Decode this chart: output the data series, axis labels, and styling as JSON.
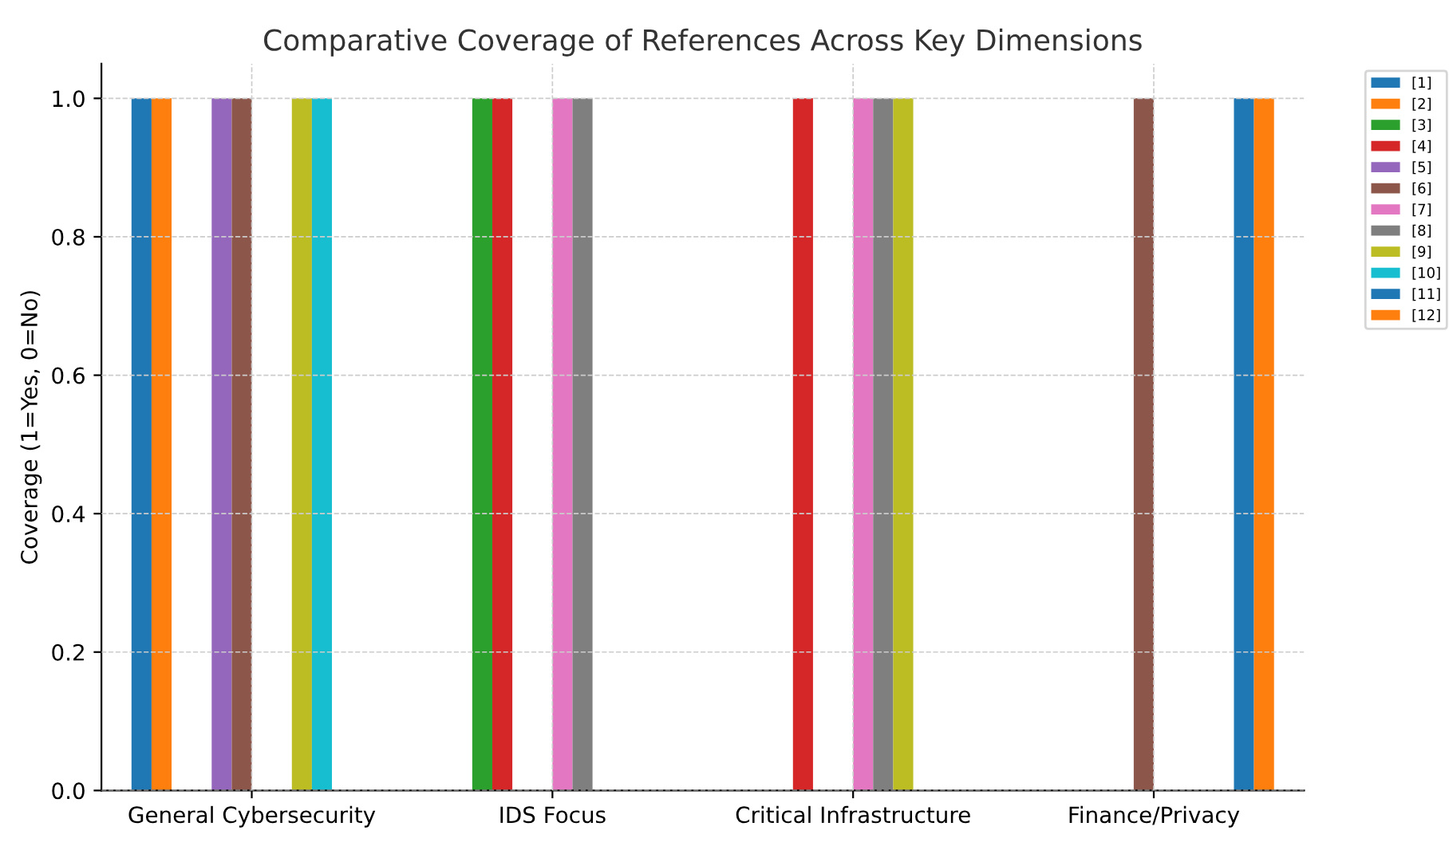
{
  "chart_data": {
    "type": "bar",
    "title": "Comparative Coverage of References Across Key Dimensions",
    "ylabel": "Coverage (1=Yes, 0=No)",
    "categories": [
      "General Cybersecurity",
      "IDS Focus",
      "Critical Infrastructure",
      "Finance/Privacy"
    ],
    "series": [
      {
        "name": "[1]",
        "color": "#1f77b4",
        "values": [
          1,
          0,
          0,
          0
        ]
      },
      {
        "name": "[2]",
        "color": "#ff7f0e",
        "values": [
          1,
          0,
          0,
          0
        ]
      },
      {
        "name": "[3]",
        "color": "#2ca02c",
        "values": [
          0,
          1,
          0,
          0
        ]
      },
      {
        "name": "[4]",
        "color": "#d62728",
        "values": [
          0,
          1,
          1,
          0
        ]
      },
      {
        "name": "[5]",
        "color": "#9467bd",
        "values": [
          1,
          0,
          0,
          0
        ]
      },
      {
        "name": "[6]",
        "color": "#8c564b",
        "values": [
          1,
          0,
          0,
          1
        ]
      },
      {
        "name": "[7]",
        "color": "#e377c2",
        "values": [
          0,
          1,
          1,
          0
        ]
      },
      {
        "name": "[8]",
        "color": "#7f7f7f",
        "values": [
          0,
          1,
          1,
          0
        ]
      },
      {
        "name": "[9]",
        "color": "#bcbd22",
        "values": [
          1,
          0,
          1,
          0
        ]
      },
      {
        "name": "[10]",
        "color": "#17becf",
        "values": [
          1,
          0,
          0,
          0
        ]
      },
      {
        "name": "[11]",
        "color": "#1f77b4",
        "values": [
          0,
          0,
          0,
          1
        ]
      },
      {
        "name": "[12]",
        "color": "#ff7f0e",
        "values": [
          0,
          0,
          0,
          1
        ]
      }
    ],
    "ylim": [
      0,
      1.05
    ],
    "yticks": [
      {
        "value": 0,
        "label": "0.0"
      },
      {
        "value": 0.2,
        "label": "0.2"
      },
      {
        "value": 0.4,
        "label": "0.4"
      },
      {
        "value": 0.6,
        "label": "0.6"
      },
      {
        "value": 0.8,
        "label": "0.8"
      },
      {
        "value": 1,
        "label": "1.0"
      }
    ],
    "grid": true,
    "legend": "right"
  }
}
